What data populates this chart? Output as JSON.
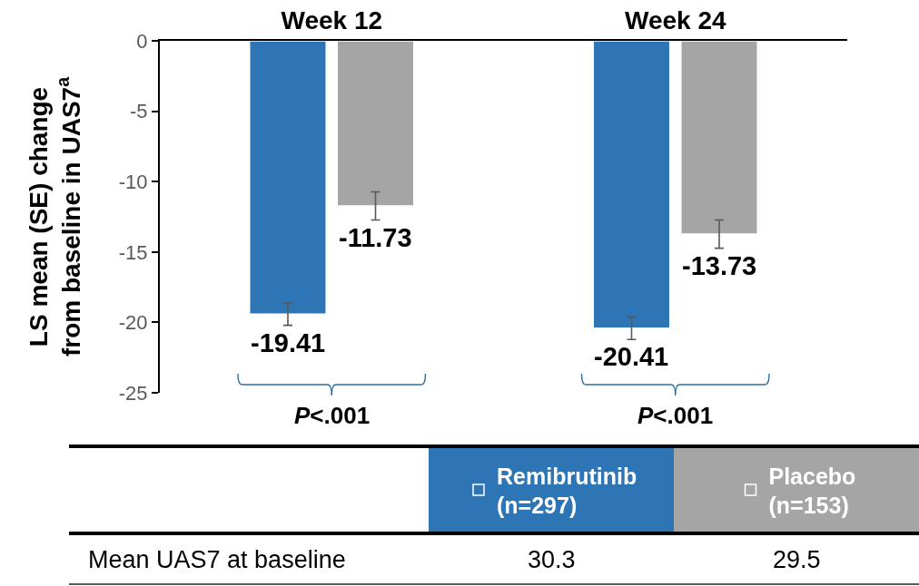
{
  "chart_data": {
    "type": "bar",
    "categories": [
      "Week 12",
      "Week 24"
    ],
    "ylabel": "LS mean (SE) change from baseline in UAS7$^{a}$",
    "series": [
      {
        "name": "Remibrutinib (n=297)",
        "color": "#2e75b6",
        "values": [
          -19.41,
          -20.41
        ],
        "errors": [
          0.8,
          0.8
        ]
      },
      {
        "name": "Placebo (n=153)",
        "color": "#a5a5a5",
        "values": [
          -11.73,
          -13.73
        ],
        "errors": [
          1.0,
          1.0
        ]
      }
    ],
    "ylim": [
      -25,
      0
    ],
    "yticks": [
      -25,
      -20,
      -15,
      -10,
      -5,
      0
    ],
    "data_labels": true,
    "legend": "bottom",
    "annotations": [
      "P<.001",
      "P<.001",
      "Mean UAS7 at baseline",
      "30.3",
      "29.5"
    ]
  }
}
